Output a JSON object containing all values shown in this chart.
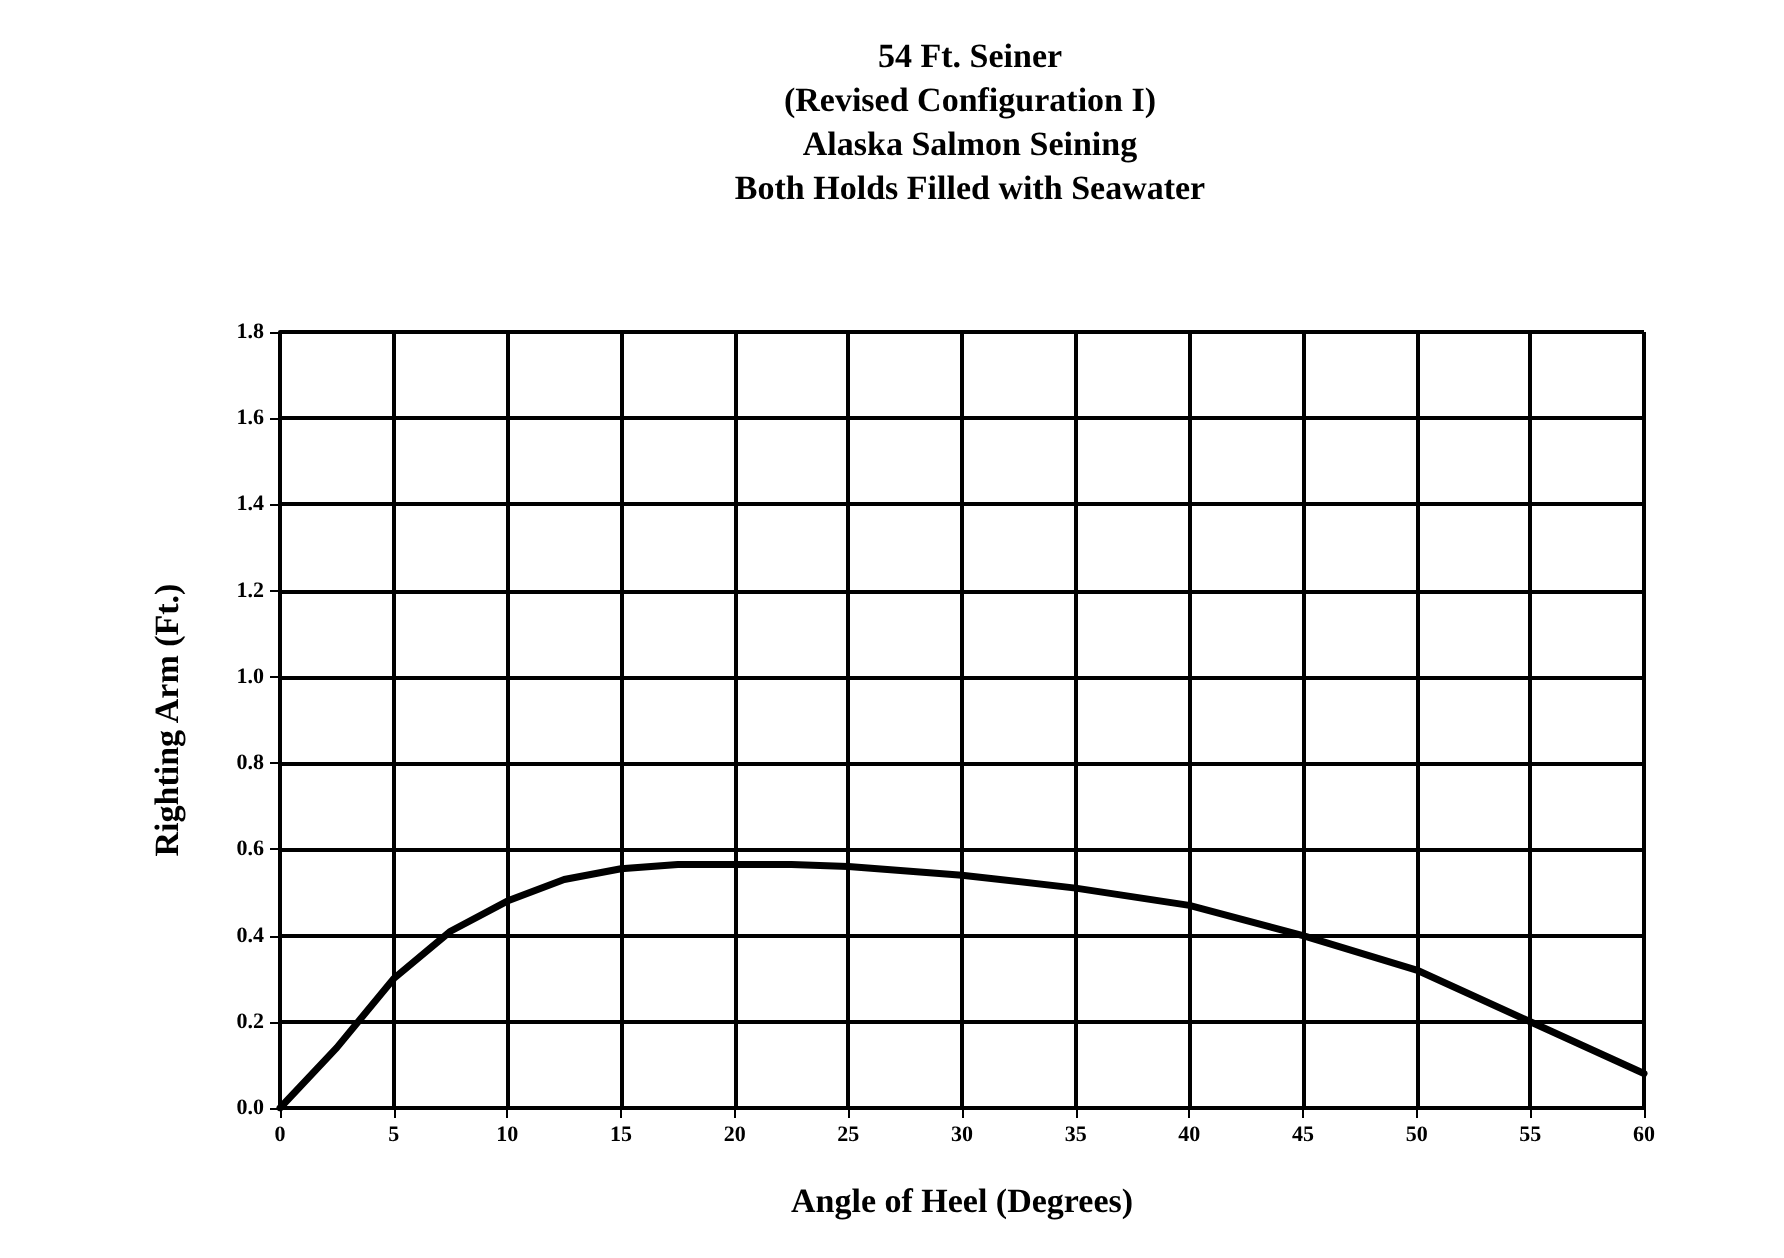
{
  "chart_data": {
    "type": "line",
    "title": "54 Ft. Seiner\n(Revised Configuration I)\nAlaska Salmon Seining\nBoth Holds Filled with Seawater",
    "xlabel": "Angle of Heel (Degrees)",
    "ylabel": "Righting Arm (Ft.)",
    "x": [
      0,
      2.5,
      5,
      7.5,
      10,
      12.5,
      15,
      17.5,
      20,
      22.5,
      25,
      30,
      35,
      40,
      45,
      50,
      55,
      60
    ],
    "series": [
      {
        "color": "#000000",
        "values": [
          0,
          0.14,
          0.3,
          0.41,
          0.48,
          0.53,
          0.555,
          0.565,
          0.565,
          0.565,
          0.56,
          0.54,
          0.51,
          0.47,
          0.4,
          0.32,
          0.2,
          0.08
        ]
      }
    ],
    "xlim": [
      0,
      60
    ],
    "xticks": [
      0,
      5,
      10,
      15,
      20,
      25,
      30,
      35,
      40,
      45,
      50,
      55,
      60
    ],
    "ylim": [
      0,
      1.8
    ],
    "yticks": [
      {
        "value": 0,
        "label": "0.0"
      },
      {
        "value": 0.2,
        "label": "0.2"
      },
      {
        "value": 0.4,
        "label": "0.4"
      },
      {
        "value": 0.6,
        "label": "0.6"
      },
      {
        "value": 0.8,
        "label": "0.8"
      },
      {
        "value": 1,
        "label": "1.0"
      },
      {
        "value": 1.2,
        "label": "1.2"
      },
      {
        "value": 1.4,
        "label": "1.4"
      },
      {
        "value": 1.6,
        "label": "1.6"
      },
      {
        "value": 1.8,
        "label": "1.8"
      }
    ],
    "grid": true,
    "marker": "none",
    "line_style": "solid"
  }
}
